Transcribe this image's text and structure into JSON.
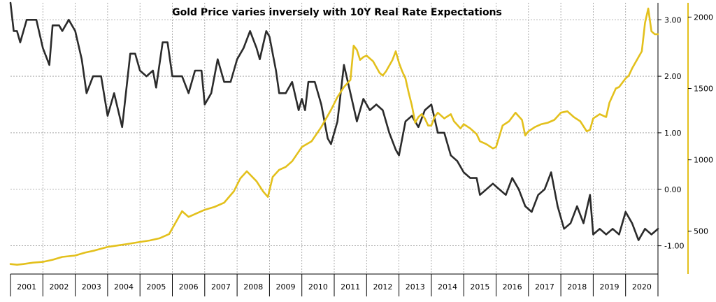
{
  "chart_data": {
    "type": "line",
    "title": "Gold Price varies inversely with 10Y Real Rate Expectations",
    "x_tick_labels": [
      "2001",
      "2002",
      "2003",
      "2004",
      "2005",
      "2006",
      "2007",
      "2008",
      "2009",
      "2010",
      "2011",
      "2012",
      "2013",
      "2014",
      "2015",
      "2016",
      "2017",
      "2018",
      "2019",
      "2020"
    ],
    "left_axis": {
      "tick_labels": [
        "3.00",
        "2.00",
        "1.00",
        "0.00",
        "-1.00"
      ],
      "ylim": [
        -1.5,
        3.3
      ]
    },
    "right_axis": {
      "tick_labels": [
        "2000",
        "1500",
        "1000",
        "500"
      ],
      "ylim": [
        200,
        2100
      ]
    },
    "series": [
      {
        "axis": "left",
        "color": "#2b2b2b",
        "points": [
          [
            2001.0,
            3.3
          ],
          [
            2001.1,
            2.8
          ],
          [
            2001.2,
            2.8
          ],
          [
            2001.3,
            2.6
          ],
          [
            2001.5,
            3.0
          ],
          [
            2001.8,
            3.0
          ],
          [
            2002.0,
            2.5
          ],
          [
            2002.2,
            2.2
          ],
          [
            2002.3,
            2.9
          ],
          [
            2002.5,
            2.9
          ],
          [
            2002.6,
            2.8
          ],
          [
            2002.8,
            3.0
          ],
          [
            2003.0,
            2.8
          ],
          [
            2003.2,
            2.3
          ],
          [
            2003.35,
            1.7
          ],
          [
            2003.55,
            2.0
          ],
          [
            2003.8,
            2.0
          ],
          [
            2004.0,
            1.3
          ],
          [
            2004.2,
            1.7
          ],
          [
            2004.45,
            1.1
          ],
          [
            2004.7,
            2.4
          ],
          [
            2004.85,
            2.4
          ],
          [
            2005.0,
            2.1
          ],
          [
            2005.2,
            2.0
          ],
          [
            2005.4,
            2.1
          ],
          [
            2005.5,
            1.8
          ],
          [
            2005.7,
            2.6
          ],
          [
            2005.85,
            2.6
          ],
          [
            2006.0,
            2.0
          ],
          [
            2006.2,
            2.0
          ],
          [
            2006.3,
            2.0
          ],
          [
            2006.5,
            1.7
          ],
          [
            2006.7,
            2.1
          ],
          [
            2006.9,
            2.1
          ],
          [
            2007.0,
            1.5
          ],
          [
            2007.2,
            1.7
          ],
          [
            2007.4,
            2.3
          ],
          [
            2007.6,
            1.9
          ],
          [
            2007.8,
            1.9
          ],
          [
            2008.0,
            2.3
          ],
          [
            2008.2,
            2.5
          ],
          [
            2008.4,
            2.8
          ],
          [
            2008.6,
            2.5
          ],
          [
            2008.7,
            2.3
          ],
          [
            2008.9,
            2.8
          ],
          [
            2009.0,
            2.7
          ],
          [
            2009.2,
            2.1
          ],
          [
            2009.3,
            1.7
          ],
          [
            2009.5,
            1.7
          ],
          [
            2009.7,
            1.9
          ],
          [
            2009.9,
            1.4
          ],
          [
            2010.0,
            1.6
          ],
          [
            2010.1,
            1.4
          ],
          [
            2010.2,
            1.9
          ],
          [
            2010.4,
            1.9
          ],
          [
            2010.6,
            1.5
          ],
          [
            2010.8,
            0.9
          ],
          [
            2010.9,
            0.8
          ],
          [
            2011.1,
            1.2
          ],
          [
            2011.3,
            2.2
          ],
          [
            2011.5,
            1.7
          ],
          [
            2011.7,
            1.2
          ],
          [
            2011.9,
            1.6
          ],
          [
            2012.1,
            1.4
          ],
          [
            2012.3,
            1.5
          ],
          [
            2012.5,
            1.4
          ],
          [
            2012.7,
            1.0
          ],
          [
            2012.9,
            0.7
          ],
          [
            2013.0,
            0.6
          ],
          [
            2013.2,
            1.2
          ],
          [
            2013.4,
            1.3
          ],
          [
            2013.6,
            1.1
          ],
          [
            2013.8,
            1.4
          ],
          [
            2014.0,
            1.5
          ],
          [
            2014.2,
            1.0
          ],
          [
            2014.4,
            1.0
          ],
          [
            2014.6,
            0.6
          ],
          [
            2014.8,
            0.5
          ],
          [
            2015.0,
            0.3
          ],
          [
            2015.2,
            0.2
          ],
          [
            2015.4,
            0.2
          ],
          [
            2015.5,
            -0.1
          ],
          [
            2015.7,
            0.0
          ],
          [
            2015.9,
            0.1
          ],
          [
            2016.1,
            0.0
          ],
          [
            2016.3,
            -0.1
          ],
          [
            2016.5,
            0.2
          ],
          [
            2016.7,
            0.0
          ],
          [
            2016.9,
            -0.3
          ],
          [
            2017.1,
            -0.4
          ],
          [
            2017.3,
            -0.1
          ],
          [
            2017.5,
            0.0
          ],
          [
            2017.7,
            0.3
          ],
          [
            2017.9,
            -0.3
          ],
          [
            2018.1,
            -0.7
          ],
          [
            2018.3,
            -0.6
          ],
          [
            2018.5,
            -0.3
          ],
          [
            2018.7,
            -0.6
          ],
          [
            2018.9,
            -0.1
          ],
          [
            2019.0,
            -0.8
          ],
          [
            2019.2,
            -0.7
          ],
          [
            2019.4,
            -0.8
          ],
          [
            2019.6,
            -0.7
          ],
          [
            2019.8,
            -0.8
          ],
          [
            2020.0,
            -0.4
          ],
          [
            2020.2,
            -0.6
          ],
          [
            2020.4,
            -0.9
          ],
          [
            2020.6,
            -0.7
          ],
          [
            2020.8,
            -0.8
          ],
          [
            2020.9,
            -0.75
          ],
          [
            2021.0,
            -0.7
          ]
        ]
      },
      {
        "axis": "right",
        "color": "#e3c01c",
        "points": [
          [
            2001.0,
            270
          ],
          [
            2001.2,
            265
          ],
          [
            2001.4,
            270
          ],
          [
            2001.7,
            280
          ],
          [
            2002.0,
            285
          ],
          [
            2002.3,
            300
          ],
          [
            2002.6,
            320
          ],
          [
            2003.0,
            330
          ],
          [
            2003.3,
            350
          ],
          [
            2003.6,
            365
          ],
          [
            2004.0,
            390
          ],
          [
            2004.3,
            400
          ],
          [
            2004.6,
            410
          ],
          [
            2005.0,
            425
          ],
          [
            2005.3,
            435
          ],
          [
            2005.6,
            450
          ],
          [
            2005.9,
            480
          ],
          [
            2006.1,
            560
          ],
          [
            2006.3,
            640
          ],
          [
            2006.5,
            600
          ],
          [
            2006.7,
            620
          ],
          [
            2007.0,
            650
          ],
          [
            2007.3,
            670
          ],
          [
            2007.6,
            700
          ],
          [
            2007.9,
            780
          ],
          [
            2008.1,
            870
          ],
          [
            2008.3,
            920
          ],
          [
            2008.6,
            850
          ],
          [
            2008.8,
            780
          ],
          [
            2008.95,
            740
          ],
          [
            2009.1,
            880
          ],
          [
            2009.3,
            930
          ],
          [
            2009.5,
            950
          ],
          [
            2009.7,
            990
          ],
          [
            2010.0,
            1090
          ],
          [
            2010.3,
            1130
          ],
          [
            2010.6,
            1230
          ],
          [
            2010.9,
            1350
          ],
          [
            2011.1,
            1440
          ],
          [
            2011.3,
            1510
          ],
          [
            2011.5,
            1560
          ],
          [
            2011.6,
            1800
          ],
          [
            2011.7,
            1770
          ],
          [
            2011.8,
            1700
          ],
          [
            2011.9,
            1720
          ],
          [
            2012.0,
            1730
          ],
          [
            2012.2,
            1690
          ],
          [
            2012.4,
            1610
          ],
          [
            2012.5,
            1590
          ],
          [
            2012.6,
            1620
          ],
          [
            2012.7,
            1660
          ],
          [
            2012.8,
            1700
          ],
          [
            2012.9,
            1760
          ],
          [
            2013.0,
            1680
          ],
          [
            2013.1,
            1620
          ],
          [
            2013.2,
            1570
          ],
          [
            2013.3,
            1470
          ],
          [
            2013.4,
            1380
          ],
          [
            2013.5,
            1260
          ],
          [
            2013.6,
            1300
          ],
          [
            2013.7,
            1320
          ],
          [
            2013.8,
            1290
          ],
          [
            2013.9,
            1240
          ],
          [
            2014.0,
            1240
          ],
          [
            2014.1,
            1300
          ],
          [
            2014.2,
            1330
          ],
          [
            2014.4,
            1290
          ],
          [
            2014.6,
            1320
          ],
          [
            2014.7,
            1270
          ],
          [
            2014.9,
            1220
          ],
          [
            2015.0,
            1250
          ],
          [
            2015.2,
            1220
          ],
          [
            2015.4,
            1180
          ],
          [
            2015.5,
            1130
          ],
          [
            2015.7,
            1110
          ],
          [
            2015.9,
            1080
          ],
          [
            2016.0,
            1090
          ],
          [
            2016.2,
            1240
          ],
          [
            2016.4,
            1270
          ],
          [
            2016.6,
            1330
          ],
          [
            2016.8,
            1280
          ],
          [
            2016.9,
            1170
          ],
          [
            2017.0,
            1200
          ],
          [
            2017.2,
            1230
          ],
          [
            2017.4,
            1250
          ],
          [
            2017.6,
            1260
          ],
          [
            2017.8,
            1280
          ],
          [
            2018.0,
            1330
          ],
          [
            2018.2,
            1340
          ],
          [
            2018.4,
            1300
          ],
          [
            2018.6,
            1270
          ],
          [
            2018.8,
            1200
          ],
          [
            2018.9,
            1210
          ],
          [
            2019.0,
            1290
          ],
          [
            2019.2,
            1320
          ],
          [
            2019.4,
            1300
          ],
          [
            2019.5,
            1400
          ],
          [
            2019.7,
            1500
          ],
          [
            2019.8,
            1510
          ],
          [
            2020.0,
            1570
          ],
          [
            2020.1,
            1590
          ],
          [
            2020.2,
            1640
          ],
          [
            2020.4,
            1720
          ],
          [
            2020.5,
            1760
          ],
          [
            2020.6,
            1960
          ],
          [
            2020.7,
            2060
          ],
          [
            2020.8,
            1900
          ],
          [
            2020.9,
            1880
          ],
          [
            2021.0,
            1880
          ]
        ]
      }
    ]
  }
}
